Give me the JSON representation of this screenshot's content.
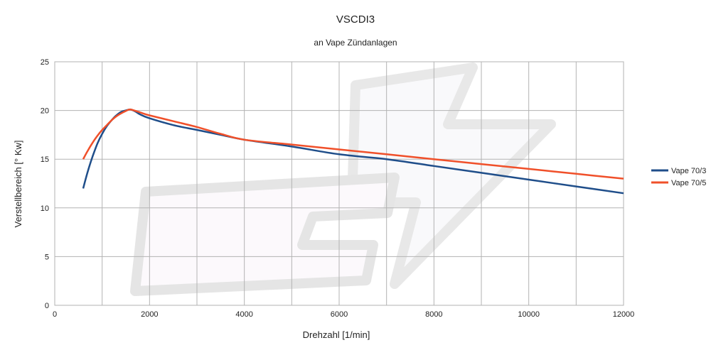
{
  "chart_data": {
    "type": "line",
    "title": "VSCDI3",
    "subtitle": "an Vape Zündanlagen",
    "xlabel": "Drehzahl [1/min]",
    "ylabel": "Verstellbereich [° Kw]",
    "xlim": [
      0,
      12000
    ],
    "ylim": [
      0,
      25
    ],
    "xticks": [
      0,
      2000,
      4000,
      6000,
      8000,
      10000,
      12000
    ],
    "yticks": [
      0,
      5,
      10,
      15,
      20,
      25
    ],
    "grid": true,
    "legend_position": "right",
    "series": [
      {
        "name": "Vape 70/3",
        "color": "#1f4e8a",
        "points": [
          [
            600,
            12.0
          ],
          [
            700,
            13.8
          ],
          [
            800,
            15.3
          ],
          [
            900,
            16.6
          ],
          [
            1000,
            17.6
          ],
          [
            1100,
            18.4
          ],
          [
            1200,
            19.0
          ],
          [
            1300,
            19.5
          ],
          [
            1400,
            19.85
          ],
          [
            1500,
            20.0
          ],
          [
            1600,
            20.1
          ],
          [
            1700,
            19.9
          ],
          [
            1800,
            19.6
          ],
          [
            2000,
            19.2
          ],
          [
            2500,
            18.5
          ],
          [
            3000,
            18.0
          ],
          [
            3500,
            17.5
          ],
          [
            4000,
            17.0
          ],
          [
            5000,
            16.3
          ],
          [
            6000,
            15.5
          ],
          [
            7000,
            15.0
          ],
          [
            8000,
            14.3
          ],
          [
            9000,
            13.6
          ],
          [
            10000,
            12.9
          ],
          [
            11000,
            12.2
          ],
          [
            12000,
            11.5
          ]
        ]
      },
      {
        "name": "Vape 70/5",
        "color": "#f0502a",
        "points": [
          [
            600,
            15.0
          ],
          [
            700,
            15.9
          ],
          [
            800,
            16.7
          ],
          [
            900,
            17.4
          ],
          [
            1000,
            18.0
          ],
          [
            1100,
            18.5
          ],
          [
            1200,
            19.0
          ],
          [
            1300,
            19.4
          ],
          [
            1400,
            19.7
          ],
          [
            1500,
            19.95
          ],
          [
            1600,
            20.1
          ],
          [
            1800,
            19.8
          ],
          [
            2000,
            19.5
          ],
          [
            2500,
            18.9
          ],
          [
            3000,
            18.3
          ],
          [
            3500,
            17.6
          ],
          [
            4000,
            17.0
          ],
          [
            5000,
            16.5
          ],
          [
            6000,
            16.0
          ],
          [
            7000,
            15.5
          ],
          [
            8000,
            15.0
          ],
          [
            9000,
            14.5
          ],
          [
            10000,
            14.0
          ],
          [
            11000,
            13.5
          ],
          [
            12000,
            13.0
          ]
        ]
      }
    ]
  }
}
